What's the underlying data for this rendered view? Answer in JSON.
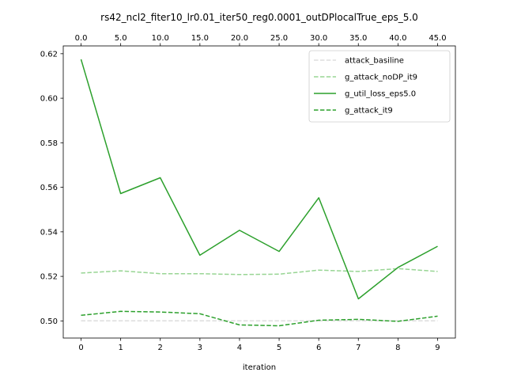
{
  "chart_data": {
    "type": "line",
    "title": "rs42_ncl2_fiter10_lr0.01_iter50_reg0.0001_outDPlocalTrue_eps_5.0",
    "xlabel": "iteration",
    "ylabel": "",
    "x": [
      0,
      1,
      2,
      3,
      4,
      5,
      6,
      7,
      8,
      9
    ],
    "xlim": [
      -0.45,
      9.45
    ],
    "ylim": [
      0.4923,
      0.6235
    ],
    "yticks": [
      0.5,
      0.52,
      0.54,
      0.56,
      0.58,
      0.6,
      0.62
    ],
    "ytick_labels": [
      "0.50",
      "0.52",
      "0.54",
      "0.56",
      "0.58",
      "0.60",
      "0.62"
    ],
    "top_xticks": [
      "0.0",
      "5.0",
      "10.0",
      "15.0",
      "20.0",
      "25.0",
      "30.0",
      "35.0",
      "40.0",
      "45.0"
    ],
    "grid": false,
    "legend_position": "top-right",
    "series": [
      {
        "name": "attack_basiline",
        "color": "#dddddd",
        "dash": "dashed",
        "values": [
          0.5,
          0.5,
          0.5,
          0.5,
          0.5,
          0.5,
          0.5,
          0.5,
          0.5,
          0.5
        ]
      },
      {
        "name": "g_attack_noDP_it9",
        "color": "#98d594",
        "dash": "dashed",
        "values": [
          0.5215,
          0.5225,
          0.5212,
          0.5212,
          0.5208,
          0.521,
          0.5228,
          0.5222,
          0.5235,
          0.5222
        ]
      },
      {
        "name": "g_util_loss_eps5.0",
        "color": "#2ca02c",
        "dash": "solid",
        "values": [
          0.6175,
          0.5572,
          0.5643,
          0.5295,
          0.5407,
          0.5312,
          0.5553,
          0.5099,
          0.524,
          0.5335
        ]
      },
      {
        "name": "g_attack_it9",
        "color": "#2ca02c",
        "dash": "dashed",
        "values": [
          0.5025,
          0.5043,
          0.504,
          0.5032,
          0.4982,
          0.4978,
          0.5003,
          0.5007,
          0.4998,
          0.5021
        ]
      }
    ]
  }
}
